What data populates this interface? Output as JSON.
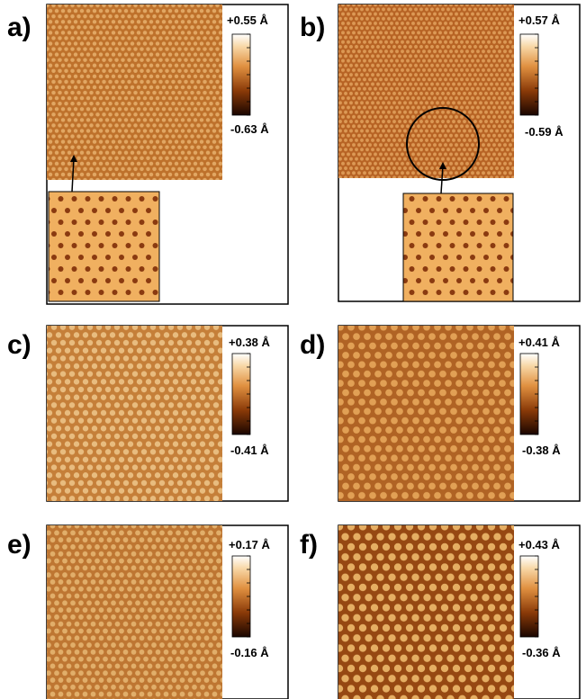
{
  "panels": [
    {
      "label": "a)",
      "max": "+0.55 Å",
      "min": "-0.63 Å"
    },
    {
      "label": "b)",
      "max": "+0.57 Å",
      "min": "-0.59 Å"
    },
    {
      "label": "c)",
      "max": "+0.38 Å",
      "min": "-0.41 Å"
    },
    {
      "label": "d)",
      "max": "+0.41 Å",
      "min": "-0.38 Å"
    },
    {
      "label": "e)",
      "max": "+0.17 Å",
      "min": "-0.16 Å"
    },
    {
      "label": "f)",
      "max": "+0.43 Å",
      "min": "-0.36 Å"
    }
  ]
}
